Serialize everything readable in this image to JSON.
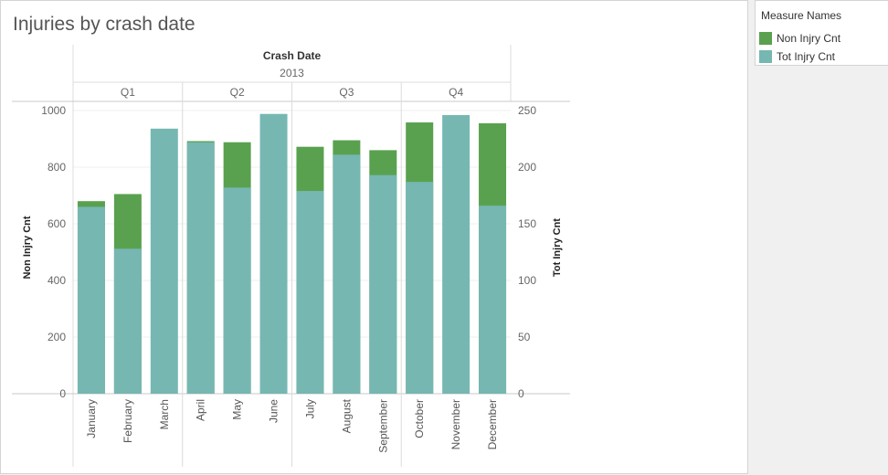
{
  "title": "Injuries by crash date",
  "legend": {
    "title": "Measure Names",
    "items": [
      {
        "label": "Non Injry Cnt",
        "color": "#59a14f"
      },
      {
        "label": "Tot Injry Cnt",
        "color": "#76b7b2"
      }
    ]
  },
  "chart_data": {
    "type": "bar",
    "title": "Injuries by crash date",
    "header_title": "Crash Date",
    "year": "2013",
    "quarters": [
      "Q1",
      "Q2",
      "Q3",
      "Q4"
    ],
    "categories": [
      "January",
      "February",
      "March",
      "April",
      "May",
      "June",
      "July",
      "August",
      "September",
      "October",
      "November",
      "December"
    ],
    "series": [
      {
        "name": "Non Injry Cnt",
        "axis": "left",
        "color": "#59a14f",
        "values": [
          680,
          705,
          0,
          892,
          888,
          0,
          872,
          895,
          860,
          958,
          0,
          955
        ]
      },
      {
        "name": "Tot Injry Cnt",
        "axis": "right",
        "color": "#76b7b2",
        "values": [
          165,
          128,
          234,
          222,
          182,
          247,
          179,
          211,
          193,
          187,
          246,
          166
        ]
      }
    ],
    "left_axis": {
      "label": "Non Injry Cnt",
      "ticks": [
        "0",
        "200",
        "400",
        "600",
        "800",
        "1000"
      ],
      "ylim": [
        0,
        1000
      ]
    },
    "right_axis": {
      "label": "Tot Injry Cnt",
      "ticks": [
        "0",
        "50",
        "100",
        "150",
        "200",
        "250"
      ],
      "ylim": [
        0,
        250
      ]
    },
    "legend_position": "top-right",
    "grid": true
  }
}
